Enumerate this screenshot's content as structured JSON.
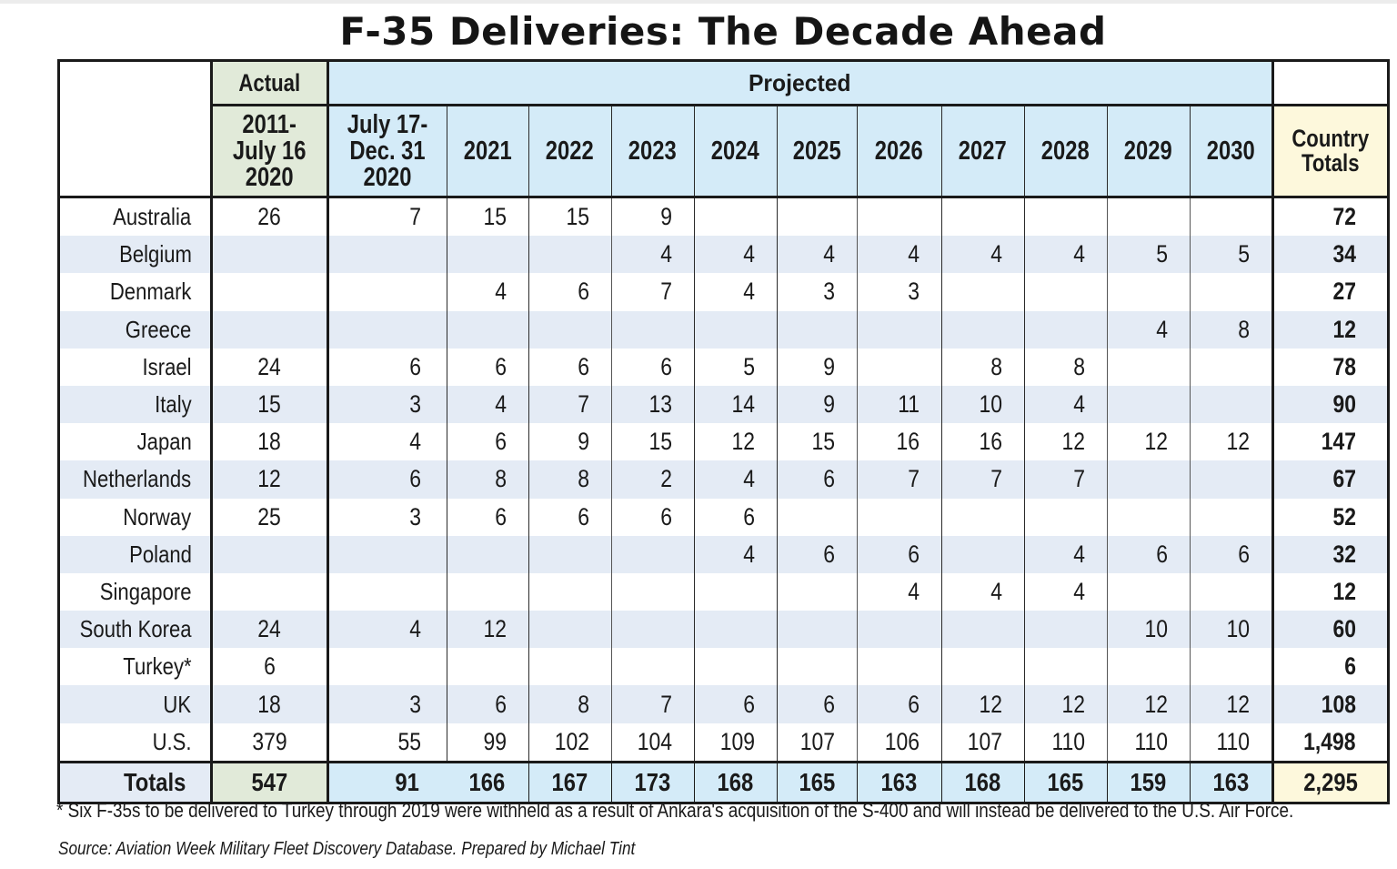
{
  "title": "F-35 Deliveries: The Decade Ahead",
  "chart_data": {
    "type": "table",
    "title": "F-35 Deliveries: The Decade Ahead",
    "group_headers": {
      "actual": "Actual",
      "projected": "Projected"
    },
    "columns": {
      "actual": [
        "2011-",
        "July 16",
        "2020"
      ],
      "july_dec": [
        "July 17-",
        "Dec. 31",
        "2020"
      ],
      "years": [
        "2021",
        "2022",
        "2023",
        "2024",
        "2025",
        "2026",
        "2027",
        "2028",
        "2029",
        "2030"
      ],
      "country_totals": [
        "Country",
        "Totals"
      ]
    },
    "rows": [
      {
        "country": "Australia",
        "actual": "26",
        "july_dec": "7",
        "years": [
          "15",
          "15",
          "9",
          "",
          "",
          "",
          "",
          "",
          "",
          ""
        ],
        "total": "72"
      },
      {
        "country": "Belgium",
        "actual": "",
        "july_dec": "",
        "years": [
          "",
          "",
          "4",
          "4",
          "4",
          "4",
          "4",
          "4",
          "5",
          "5"
        ],
        "total": "34"
      },
      {
        "country": "Denmark",
        "actual": "",
        "july_dec": "",
        "years": [
          "4",
          "6",
          "7",
          "4",
          "3",
          "3",
          "",
          "",
          "",
          ""
        ],
        "total": "27"
      },
      {
        "country": "Greece",
        "actual": "",
        "july_dec": "",
        "years": [
          "",
          "",
          "",
          "",
          "",
          "",
          "",
          "",
          "4",
          "8"
        ],
        "total": "12"
      },
      {
        "country": "Israel",
        "actual": "24",
        "july_dec": "6",
        "years": [
          "6",
          "6",
          "6",
          "5",
          "9",
          "",
          "8",
          "8",
          "",
          ""
        ],
        "total": "78"
      },
      {
        "country": "Italy",
        "actual": "15",
        "july_dec": "3",
        "years": [
          "4",
          "7",
          "13",
          "14",
          "9",
          "11",
          "10",
          "4",
          "",
          ""
        ],
        "total": "90"
      },
      {
        "country": "Japan",
        "actual": "18",
        "july_dec": "4",
        "years": [
          "6",
          "9",
          "15",
          "12",
          "15",
          "16",
          "16",
          "12",
          "12",
          "12"
        ],
        "total": "147"
      },
      {
        "country": "Netherlands",
        "actual": "12",
        "july_dec": "6",
        "years": [
          "8",
          "8",
          "2",
          "4",
          "6",
          "7",
          "7",
          "7",
          "",
          ""
        ],
        "total": "67"
      },
      {
        "country": "Norway",
        "actual": "25",
        "july_dec": "3",
        "years": [
          "6",
          "6",
          "6",
          "6",
          "",
          "",
          "",
          "",
          "",
          ""
        ],
        "total": "52"
      },
      {
        "country": "Poland",
        "actual": "",
        "july_dec": "",
        "years": [
          "",
          "",
          "",
          "4",
          "6",
          "6",
          "",
          "4",
          "6",
          "6"
        ],
        "total": "32"
      },
      {
        "country": "Singapore",
        "actual": "",
        "july_dec": "",
        "years": [
          "",
          "",
          "",
          "",
          "",
          "4",
          "4",
          "4",
          "",
          ""
        ],
        "total": "12"
      },
      {
        "country": "South Korea",
        "actual": "24",
        "july_dec": "4",
        "years": [
          "12",
          "",
          "",
          "",
          "",
          "",
          "",
          "",
          "10",
          "10"
        ],
        "total": "60"
      },
      {
        "country": "Turkey*",
        "actual": "6",
        "july_dec": "",
        "years": [
          "",
          "",
          "",
          "",
          "",
          "",
          "",
          "",
          "",
          ""
        ],
        "total": "6"
      },
      {
        "country": "UK",
        "actual": "18",
        "july_dec": "3",
        "years": [
          "6",
          "8",
          "7",
          "6",
          "6",
          "6",
          "12",
          "12",
          "12",
          "12"
        ],
        "total": "108"
      },
      {
        "country": "U.S.",
        "actual": "379",
        "july_dec": "55",
        "years": [
          "99",
          "102",
          "104",
          "109",
          "107",
          "106",
          "107",
          "110",
          "110",
          "110"
        ],
        "total": "1,498"
      }
    ],
    "totals": {
      "label": "Totals",
      "actual": "547",
      "july_dec": "91",
      "years": [
        "166",
        "167",
        "173",
        "168",
        "165",
        "163",
        "168",
        "165",
        "159",
        "163"
      ],
      "total": "2,295"
    },
    "footnote": "* Six F-35s to be delivered to Turkey through 2019 were withheld as a result of Ankara's acquisition of the S-400 and will instead be delivered to the U.S. Air Force.",
    "source": "Source: Aviation Week Military Fleet Discovery Database. Prepared by Michael Tint"
  },
  "colors": {
    "actual": "#e1ead9",
    "projected": "#d4ebf8",
    "country_totals": "#fdf8dc",
    "row_stripe": "#e4ebf5"
  }
}
